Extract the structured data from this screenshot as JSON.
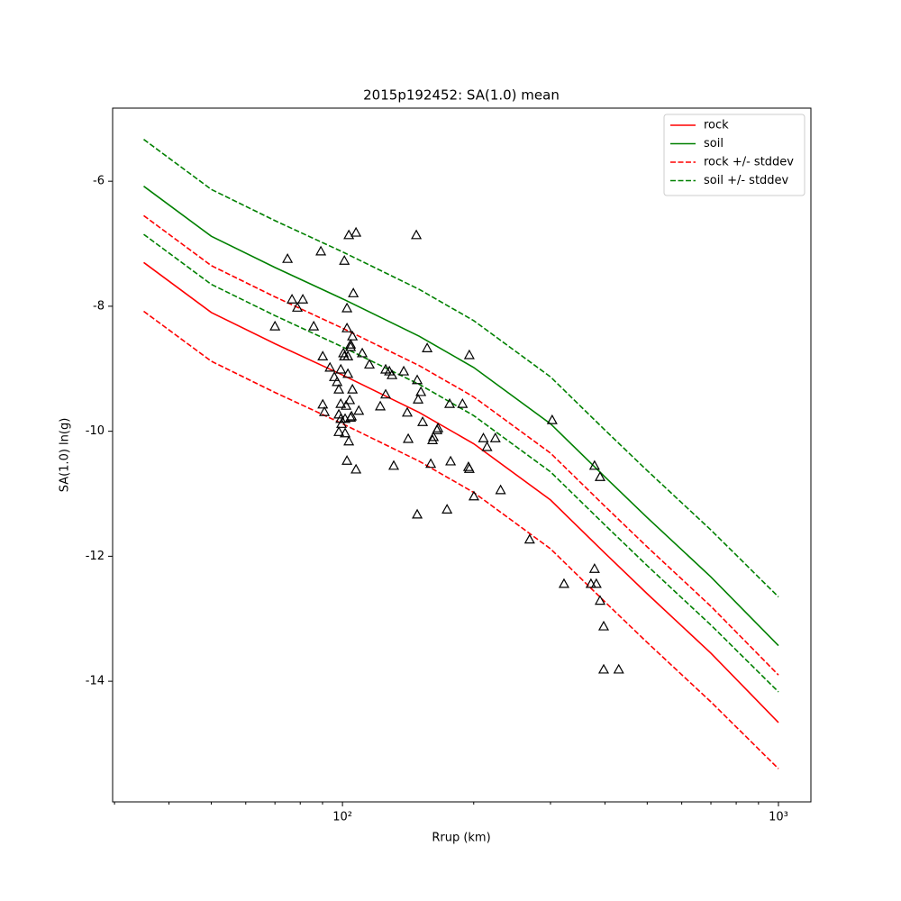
{
  "chart_data": {
    "type": "line",
    "title": "2015p192452: SA(1.0) mean",
    "xlabel": "Rrup (km)",
    "ylabel": "SA(1.0) ln(g)",
    "xscale": "log",
    "xlim": [
      29.7,
      1187
    ],
    "ylim": [
      -15.93,
      -4.83
    ],
    "xticks": [
      {
        "value": 100,
        "label": "10²"
      },
      {
        "value": 1000,
        "label": "10³"
      }
    ],
    "xminorticks": [
      30,
      40,
      50,
      60,
      70,
      80,
      90,
      200,
      300,
      400,
      500,
      600,
      700,
      800,
      900
    ],
    "yticks": [
      -14,
      -12,
      -10,
      -8,
      -6
    ],
    "legend": "upper right",
    "curve_x": [
      35,
      50,
      70,
      100,
      150,
      200,
      300,
      400,
      500,
      700,
      1000
    ],
    "series": [
      {
        "name": "rock",
        "color": "#ff0000",
        "dashed": false,
        "values": [
          -7.3,
          -8.1,
          -8.6,
          -9.1,
          -9.7,
          -10.2,
          -11.1,
          -11.95,
          -12.6,
          -13.55,
          -14.66
        ]
      },
      {
        "name": "soil",
        "color": "#008000",
        "dashed": false,
        "values": [
          -6.08,
          -6.88,
          -7.38,
          -7.88,
          -8.48,
          -8.98,
          -9.88,
          -10.73,
          -11.38,
          -12.33,
          -13.43
        ]
      },
      {
        "name": "rock +/- stddev",
        "color": "#ff0000",
        "dashed": true,
        "upper": [
          -6.55,
          -7.35,
          -7.85,
          -8.35,
          -8.95,
          -9.45,
          -10.35,
          -11.2,
          -11.85,
          -12.8,
          -13.9
        ],
        "lower": [
          -8.08,
          -8.88,
          -9.38,
          -9.88,
          -10.48,
          -10.98,
          -11.88,
          -12.73,
          -13.38,
          -14.33,
          -15.4
        ]
      },
      {
        "name": "soil +/- stddev",
        "color": "#008000",
        "dashed": true,
        "upper": [
          -5.33,
          -6.13,
          -6.63,
          -7.13,
          -7.73,
          -8.23,
          -9.13,
          -9.98,
          -10.63,
          -11.58,
          -12.65
        ],
        "lower": [
          -6.85,
          -7.65,
          -8.15,
          -8.65,
          -9.25,
          -9.75,
          -10.65,
          -11.5,
          -12.15,
          -13.1,
          -14.17
        ]
      }
    ],
    "observations": {
      "color": "#000000",
      "marker": "triangle",
      "x": [
        70.0,
        74.8,
        76.6,
        78.8,
        81.1,
        85.9,
        89.2,
        90.1,
        90.1,
        90.9,
        93.6,
        95.8,
        97.2,
        98.1,
        98.1,
        99.1,
        99.1,
        98.1,
        99.1,
        99.5,
        100.5,
        101.0,
        101.0,
        101.4,
        101.4,
        101.9,
        102.4,
        102.4,
        102.4,
        102.9,
        102.9,
        103.4,
        103.4,
        103.9,
        104.4,
        104.4,
        104.4,
        104.9,
        105.4,
        105.4,
        105.9,
        107.4,
        107.4,
        109.0,
        111.0,
        115.3,
        122.1,
        125.6,
        125.6,
        128.1,
        129.9,
        131.1,
        138.2,
        140.8,
        141.5,
        147.7,
        148.4,
        148.4,
        149.1,
        151.3,
        152.7,
        156.4,
        159.4,
        160.9,
        161.7,
        164.8,
        165.6,
        173.7,
        176.1,
        177.0,
        188.5,
        194.5,
        195.4,
        195.4,
        200.2,
        210.5,
        214.6,
        224.2,
        230.5,
        268.7,
        302.7,
        322.2,
        371.5,
        378.6,
        378.6,
        382.2,
        389.8,
        389.8,
        397.3,
        397.3,
        430.2
      ],
      "y": [
        -8.32,
        -7.24,
        -7.89,
        -8.02,
        -7.89,
        -8.32,
        -7.12,
        -8.8,
        -9.57,
        -9.69,
        -8.98,
        -9.13,
        -9.21,
        -9.33,
        -9.73,
        -9.01,
        -9.8,
        -10.01,
        -9.56,
        -9.88,
        -8.75,
        -8.8,
        -7.27,
        -9.8,
        -10.03,
        -9.59,
        -10.47,
        -8.03,
        -8.35,
        -8.8,
        -9.08,
        -6.86,
        -10.16,
        -9.5,
        -8.61,
        -9.78,
        -8.65,
        -9.76,
        -8.48,
        -9.33,
        -7.79,
        -6.82,
        -10.61,
        -9.67,
        -8.75,
        -8.93,
        -9.6,
        -9.41,
        -9.01,
        -9.04,
        -9.1,
        -10.55,
        -9.04,
        -9.7,
        -10.12,
        -6.86,
        -11.33,
        -9.18,
        -9.49,
        -9.37,
        -9.85,
        -8.67,
        -10.52,
        -10.14,
        -10.09,
        -9.98,
        -9.95,
        -11.25,
        -9.56,
        -10.48,
        -9.56,
        -10.57,
        -8.78,
        -10.6,
        -11.04,
        -10.11,
        -10.25,
        -10.11,
        -10.94,
        -11.73,
        -9.82,
        -12.44,
        -12.44,
        -10.55,
        -12.2,
        -12.44,
        -10.73,
        -12.71,
        -13.12,
        -13.81,
        -13.81
      ]
    }
  }
}
